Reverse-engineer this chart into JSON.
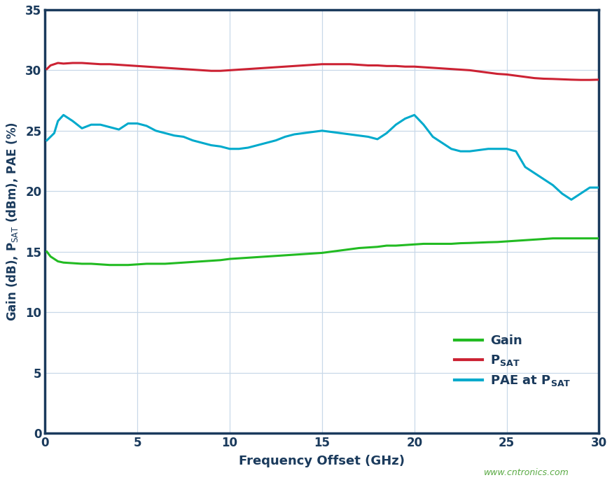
{
  "xlabel": "Frequency Offset (GHz)",
  "ylabel": "Gain (dB), P$_\\mathrm{SAT}$ (dBm), PAE (%)",
  "xlim": [
    0,
    30
  ],
  "ylim": [
    0,
    35
  ],
  "xticks": [
    0,
    5,
    10,
    15,
    20,
    25,
    30
  ],
  "yticks": [
    0,
    5,
    10,
    15,
    20,
    25,
    30,
    35
  ],
  "grid_color": "#c8d8e8",
  "background_color": "#ffffff",
  "spine_color": "#1a3a5c",
  "tick_label_color": "#1a3a5c",
  "label_color": "#1a3a5c",
  "watermark": "www.cntronics.com",
  "watermark_color": "#5aaa44",
  "legend_colors": [
    "#22bb22",
    "#cc2233",
    "#00aacc"
  ],
  "line_width": 2.2,
  "gain_x": [
    0.1,
    0.3,
    0.5,
    0.7,
    1.0,
    1.5,
    2.0,
    2.5,
    3.0,
    3.5,
    4.0,
    4.5,
    5.0,
    5.5,
    6.0,
    6.5,
    7.0,
    7.5,
    8.0,
    8.5,
    9.0,
    9.5,
    10.0,
    10.5,
    11.0,
    11.5,
    12.0,
    12.5,
    13.0,
    13.5,
    14.0,
    14.5,
    15.0,
    15.5,
    16.0,
    16.5,
    17.0,
    17.5,
    18.0,
    18.5,
    19.0,
    19.5,
    20.0,
    20.5,
    21.0,
    21.5,
    22.0,
    22.5,
    23.0,
    23.5,
    24.0,
    24.5,
    25.0,
    25.5,
    26.0,
    26.5,
    27.0,
    27.5,
    28.0,
    28.5,
    29.0,
    29.5,
    30.0
  ],
  "gain_y": [
    15.0,
    14.6,
    14.4,
    14.2,
    14.1,
    14.05,
    14.0,
    14.0,
    13.95,
    13.9,
    13.9,
    13.9,
    13.95,
    14.0,
    14.0,
    14.0,
    14.05,
    14.1,
    14.15,
    14.2,
    14.25,
    14.3,
    14.4,
    14.45,
    14.5,
    14.55,
    14.6,
    14.65,
    14.7,
    14.75,
    14.8,
    14.85,
    14.9,
    15.0,
    15.1,
    15.2,
    15.3,
    15.35,
    15.4,
    15.5,
    15.5,
    15.55,
    15.6,
    15.65,
    15.65,
    15.65,
    15.65,
    15.7,
    15.72,
    15.75,
    15.78,
    15.8,
    15.85,
    15.9,
    15.95,
    16.0,
    16.05,
    16.1,
    16.1,
    16.1,
    16.1,
    16.1,
    16.1
  ],
  "psat_x": [
    0.1,
    0.3,
    0.5,
    0.7,
    1.0,
    1.5,
    2.0,
    2.5,
    3.0,
    3.5,
    4.0,
    4.5,
    5.0,
    5.5,
    6.0,
    6.5,
    7.0,
    7.5,
    8.0,
    8.5,
    9.0,
    9.5,
    10.0,
    10.5,
    11.0,
    11.5,
    12.0,
    12.5,
    13.0,
    13.5,
    14.0,
    14.5,
    15.0,
    15.5,
    16.0,
    16.5,
    17.0,
    17.5,
    18.0,
    18.5,
    19.0,
    19.5,
    20.0,
    20.5,
    21.0,
    21.5,
    22.0,
    22.5,
    23.0,
    23.5,
    24.0,
    24.5,
    25.0,
    25.5,
    26.0,
    26.5,
    27.0,
    27.5,
    28.0,
    28.5,
    29.0,
    29.5,
    30.0
  ],
  "psat_y": [
    30.1,
    30.4,
    30.5,
    30.6,
    30.55,
    30.6,
    30.6,
    30.55,
    30.5,
    30.5,
    30.45,
    30.4,
    30.35,
    30.3,
    30.25,
    30.2,
    30.15,
    30.1,
    30.05,
    30.0,
    29.95,
    29.95,
    30.0,
    30.05,
    30.1,
    30.15,
    30.2,
    30.25,
    30.3,
    30.35,
    30.4,
    30.45,
    30.5,
    30.5,
    30.5,
    30.5,
    30.45,
    30.4,
    30.4,
    30.35,
    30.35,
    30.3,
    30.3,
    30.25,
    30.2,
    30.15,
    30.1,
    30.05,
    30.0,
    29.9,
    29.8,
    29.7,
    29.65,
    29.55,
    29.45,
    29.35,
    29.3,
    29.28,
    29.25,
    29.22,
    29.2,
    29.2,
    29.22
  ],
  "pae_x": [
    0.1,
    0.3,
    0.5,
    0.7,
    1.0,
    1.5,
    2.0,
    2.5,
    3.0,
    3.5,
    4.0,
    4.5,
    5.0,
    5.5,
    6.0,
    6.5,
    7.0,
    7.5,
    8.0,
    8.5,
    9.0,
    9.5,
    10.0,
    10.5,
    11.0,
    11.5,
    12.0,
    12.5,
    13.0,
    13.5,
    14.0,
    14.5,
    15.0,
    15.5,
    16.0,
    16.5,
    17.0,
    17.5,
    18.0,
    18.5,
    19.0,
    19.5,
    20.0,
    20.5,
    21.0,
    21.5,
    22.0,
    22.5,
    23.0,
    23.5,
    24.0,
    24.5,
    25.0,
    25.5,
    26.0,
    26.5,
    27.0,
    27.5,
    28.0,
    28.5,
    29.0,
    29.5,
    30.0
  ],
  "pae_y": [
    24.2,
    24.5,
    24.8,
    25.8,
    26.3,
    25.8,
    25.2,
    25.5,
    25.5,
    25.3,
    25.1,
    25.6,
    25.6,
    25.4,
    25.0,
    24.8,
    24.6,
    24.5,
    24.2,
    24.0,
    23.8,
    23.7,
    23.5,
    23.5,
    23.6,
    23.8,
    24.0,
    24.2,
    24.5,
    24.7,
    24.8,
    24.9,
    25.0,
    24.9,
    24.8,
    24.7,
    24.6,
    24.5,
    24.3,
    24.8,
    25.5,
    26.0,
    26.3,
    25.5,
    24.5,
    24.0,
    23.5,
    23.3,
    23.3,
    23.4,
    23.5,
    23.5,
    23.5,
    23.3,
    22.0,
    21.5,
    21.0,
    20.5,
    19.8,
    19.3,
    19.8,
    20.3,
    20.3
  ]
}
